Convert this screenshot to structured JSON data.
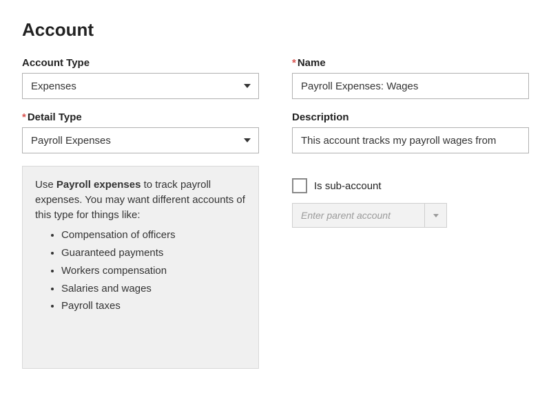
{
  "page": {
    "title": "Account"
  },
  "left": {
    "accountType": {
      "label": "Account Type",
      "value": "Expenses"
    },
    "detailType": {
      "label": "Detail Type",
      "required": "*",
      "value": "Payroll Expenses"
    },
    "info": {
      "prefix": "Use ",
      "bold": "Payroll expenses",
      "suffix": " to track payroll expenses. You may want different accounts of this type for things like:",
      "items": [
        "Compensation of officers",
        "Guaranteed payments",
        "Workers compensation",
        "Salaries and wages",
        "Payroll taxes"
      ]
    }
  },
  "right": {
    "name": {
      "label": "Name",
      "required": "*",
      "value": "Payroll Expenses: Wages"
    },
    "description": {
      "label": "Description",
      "value": "This account tracks my payroll wages from"
    },
    "subAccount": {
      "label": "Is sub-account",
      "parentPlaceholder": "Enter parent account"
    }
  }
}
